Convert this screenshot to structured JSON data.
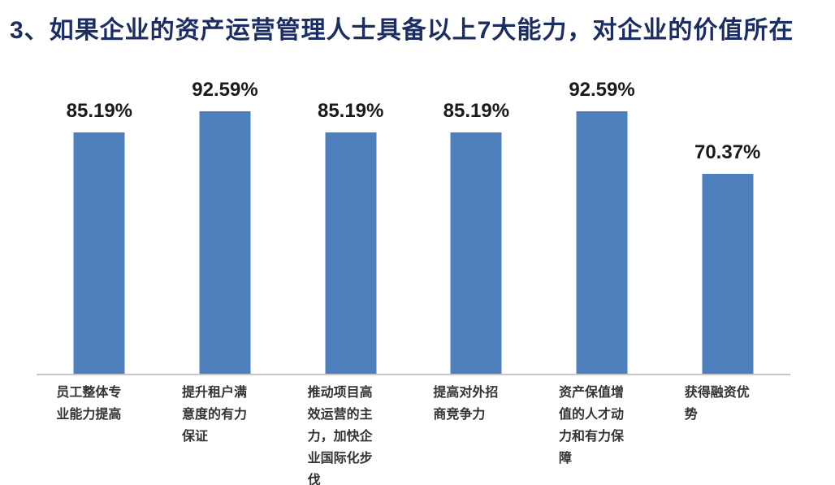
{
  "title": "3、如果企业的资产运营管理人士具备以上7大能力，对企业的价值所在",
  "colors": {
    "title": "#1c2d63",
    "bar": "#4d80bd",
    "value_label": "#1a1a1a",
    "category_label": "#333333",
    "axis_line": "#c8c8c8",
    "background": "#ffffff"
  },
  "chart_data": {
    "type": "bar",
    "title": "3、如果企业的资产运营管理人士具备以上7大能力，对企业的价值所在",
    "categories": [
      "员工整体专业能力提高",
      "提升租户满意度的有力保证",
      "推动项目高效运营的主力，加快企业国际化步伐",
      "提高对外招商竞争力",
      "资产保值增值的人才动力和有力保障",
      "获得融资优势"
    ],
    "values": [
      85.19,
      92.59,
      85.19,
      85.19,
      92.59,
      70.37
    ],
    "value_labels": [
      "85.19%",
      "92.59%",
      "85.19%",
      "85.19%",
      "92.59%",
      "70.37%"
    ],
    "xlabel": "",
    "ylabel": "",
    "ylim": [
      0,
      100
    ],
    "grid": false,
    "legend": "none",
    "bar_label_position": "above-bar",
    "baseline_axis": "bottom"
  }
}
